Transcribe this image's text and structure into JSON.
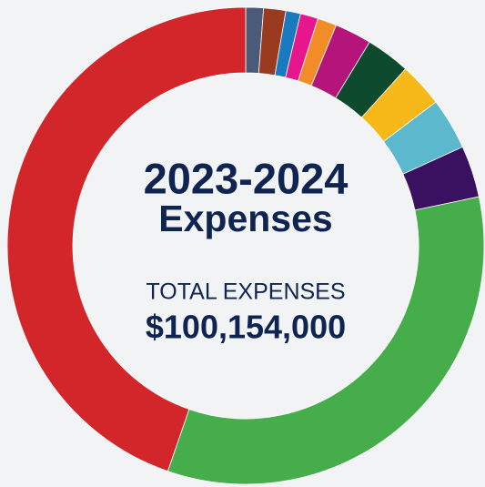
{
  "chart_data": {
    "type": "donut",
    "title": [
      "2023-2024",
      "Expenses"
    ],
    "annotations": [
      "TOTAL EXPENSES",
      "$100,154,000"
    ],
    "categories": [
      null,
      null,
      null,
      null,
      null,
      null,
      null,
      null,
      null,
      null,
      null,
      null
    ],
    "values": [
      1.2,
      1.5,
      1,
      1.2,
      1.3,
      2.5,
      3,
      3,
      3.5,
      3.5,
      33.6,
      44.7
    ],
    "colors": [
      "#4a5a78",
      "#9a3a1f",
      "#1a7ac0",
      "#e8168c",
      "#f28c28",
      "#b5147a",
      "#0d4a2e",
      "#f7b81a",
      "#5cb8cc",
      "#3a1060",
      "#45ad4a",
      "#d2262b"
    ]
  }
}
